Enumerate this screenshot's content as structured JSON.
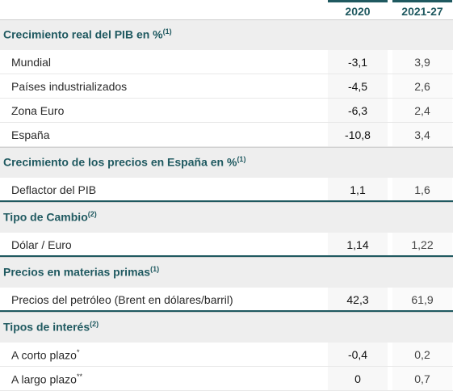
{
  "columns": [
    "2020",
    "2021-27"
  ],
  "sections": [
    {
      "title": "Crecimiento real del PIB en %",
      "note": "(1)",
      "rows": [
        {
          "label": "Mundial",
          "sup": "",
          "v2020": "-3,1",
          "v2127": "3,9"
        },
        {
          "label": "Países industrializados",
          "sup": "",
          "v2020": "-4,5",
          "v2127": "2,6"
        },
        {
          "label": "Zona Euro",
          "sup": "",
          "v2020": "-6,3",
          "v2127": "2,4"
        },
        {
          "label": "España",
          "sup": "",
          "v2020": "-10,8",
          "v2127": "3,4"
        }
      ]
    },
    {
      "title": "Crecimiento de los precios en España en %",
      "note": "(1)",
      "rows": [
        {
          "label": "Deflactor del PIB",
          "sup": "",
          "v2020": "1,1",
          "v2127": "1,6"
        }
      ]
    },
    {
      "title": "Tipo de Cambio",
      "note": "(2)",
      "rows": [
        {
          "label": "Dólar / Euro",
          "sup": "",
          "v2020": "1,14",
          "v2127": "1,22"
        }
      ]
    },
    {
      "title": "Precios en materias primas",
      "note": "(1)",
      "rows": [
        {
          "label": "Precios del petróleo (Brent en dólares/barril)",
          "sup": "",
          "v2020": "42,3",
          "v2127": "61,9"
        }
      ]
    },
    {
      "title": "Tipos de interés",
      "note": "(2)",
      "rows": [
        {
          "label": "A corto plazo",
          "sup": "*",
          "v2020": "-0,4",
          "v2127": "0,2"
        },
        {
          "label": "A largo plazo",
          "sup": "**",
          "v2020": "0",
          "v2127": "0,7"
        }
      ]
    }
  ],
  "colors": {
    "accent": "#1f5960",
    "section_bg": "#eeeeee"
  }
}
